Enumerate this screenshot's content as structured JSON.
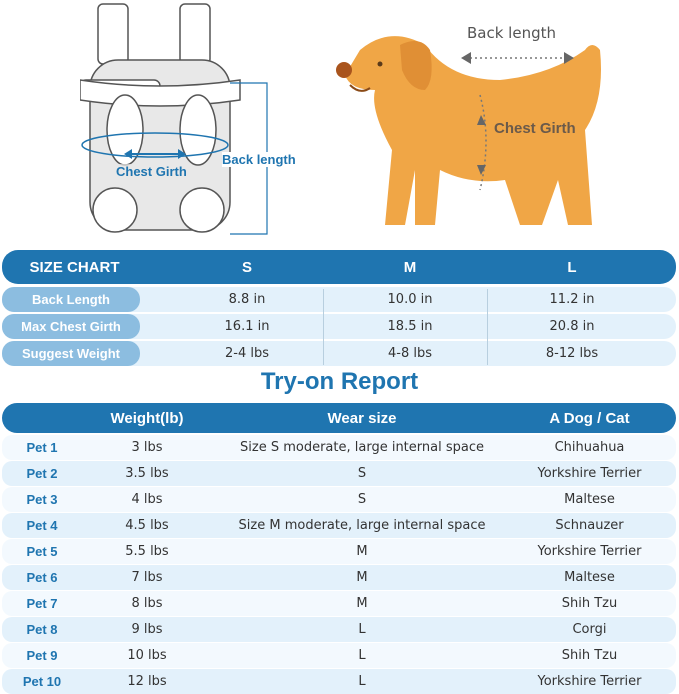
{
  "illustration": {
    "carrier_labels": {
      "chest_girth": "Chest Girth",
      "back_length": "Back length"
    },
    "dog_labels": {
      "back_length": "Back length",
      "chest_girth": "Chest Girth"
    },
    "colors": {
      "accent": "#1f75b0",
      "dog": "#f0a646"
    }
  },
  "size_chart": {
    "header": [
      "SIZE CHART",
      "S",
      "M",
      "L"
    ],
    "rows": [
      {
        "label": "Back Length",
        "values": [
          "8.8 in",
          "10.0 in",
          "11.2 in"
        ]
      },
      {
        "label": "Max Chest Girth",
        "values": [
          "16.1 in",
          "18.5 in",
          "20.8 in"
        ]
      },
      {
        "label": "Suggest Weight",
        "values": [
          "2-4 lbs",
          "4-8 lbs",
          "8-12 lbs"
        ]
      }
    ]
  },
  "report": {
    "title": "Try-on Report",
    "header": [
      "Weight(lb)",
      "Wear size",
      "A Dog / Cat"
    ],
    "rows": [
      {
        "pet": "Pet 1",
        "weight": "3 lbs",
        "size": "Size S moderate, large internal space",
        "breed": "Chihuahua"
      },
      {
        "pet": "Pet 2",
        "weight": "3.5 lbs",
        "size": "S",
        "breed": "Yorkshire Terrier"
      },
      {
        "pet": "Pet 3",
        "weight": "4 lbs",
        "size": "S",
        "breed": "Maltese"
      },
      {
        "pet": "Pet 4",
        "weight": "4.5 lbs",
        "size": "Size M moderate, large internal space",
        "breed": "Schnauzer"
      },
      {
        "pet": "Pet 5",
        "weight": "5.5 lbs",
        "size": "M",
        "breed": "Yorkshire Terrier"
      },
      {
        "pet": "Pet 6",
        "weight": "7 lbs",
        "size": "M",
        "breed": "Maltese"
      },
      {
        "pet": "Pet 7",
        "weight": "8 lbs",
        "size": "M",
        "breed": "Shih Tzu"
      },
      {
        "pet": "Pet 8",
        "weight": "9 lbs",
        "size": "L",
        "breed": "Corgi"
      },
      {
        "pet": "Pet 9",
        "weight": "10 lbs",
        "size": "L",
        "breed": "Shih Tzu"
      },
      {
        "pet": "Pet 10",
        "weight": "12 lbs",
        "size": "L",
        "breed": "Yorkshire Terrier"
      }
    ]
  }
}
